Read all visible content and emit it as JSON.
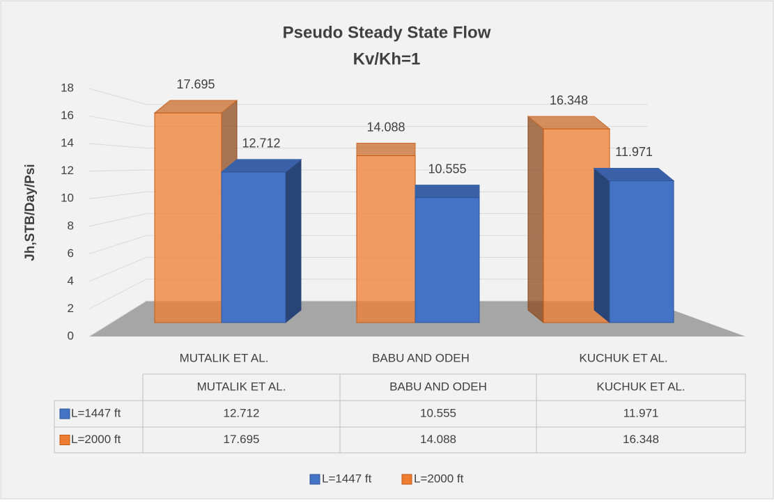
{
  "chart_data": {
    "type": "bar3d",
    "title": "Pseudo Steady State Flow",
    "subtitle": "Kv/Kh=1",
    "y_label": "Jh,STB/Day/Psi",
    "categories": [
      "MUTALIK ET AL.",
      "BABU AND ODEH",
      "KUCHUK ET AL."
    ],
    "series": [
      {
        "name": "L=1447 ft",
        "color": "#4472c4",
        "values": [
          12.712,
          10.555,
          11.971
        ]
      },
      {
        "name": "L=2000 ft",
        "color": "#ed7d31",
        "values": [
          17.695,
          14.088,
          16.348
        ]
      }
    ],
    "ylim": [
      0,
      18
    ],
    "yticks": [
      0,
      2,
      4,
      6,
      8,
      10,
      12,
      14,
      16,
      18
    ],
    "grid": true,
    "data_table": true,
    "legend": "bottom"
  }
}
